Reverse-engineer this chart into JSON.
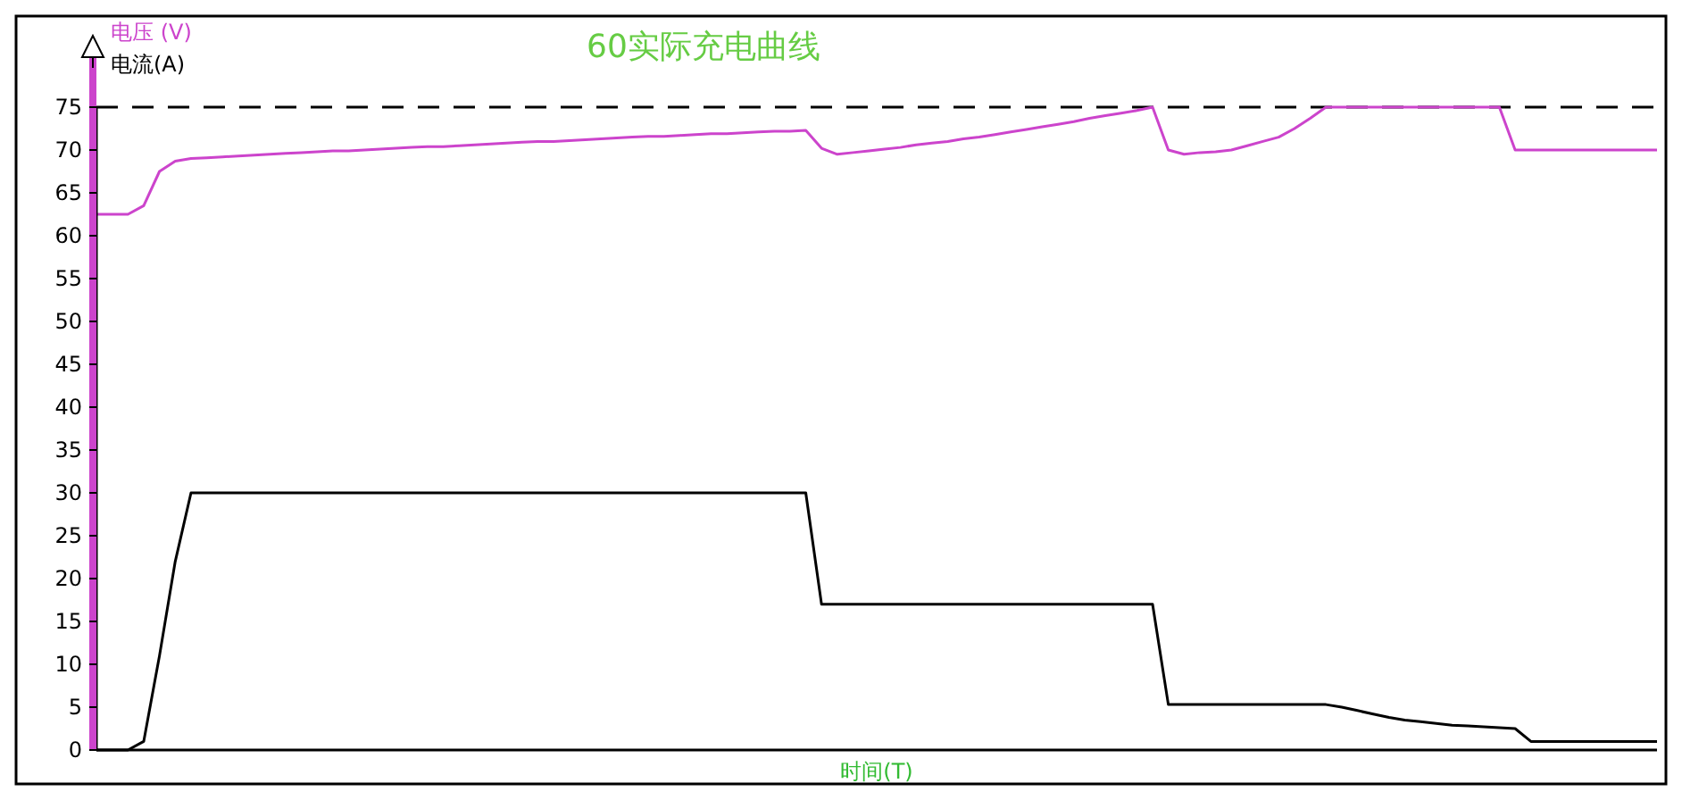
{
  "chart_data": {
    "type": "line",
    "title": "60实际充电曲线",
    "xlabel": "时间(T)",
    "categories": [
      null,
      null,
      null,
      null,
      null,
      null,
      null,
      null,
      null,
      null,
      null,
      null,
      null,
      null,
      null,
      null,
      null,
      null,
      null,
      null,
      null,
      null,
      null,
      null,
      null,
      null,
      null,
      null,
      null,
      null,
      null,
      null,
      null,
      null,
      null,
      null,
      null,
      null,
      null,
      null,
      null,
      null,
      null,
      null,
      null,
      null,
      null,
      null,
      null,
      null,
      null,
      null,
      null,
      null,
      null,
      null,
      null,
      null,
      null,
      null,
      null,
      null,
      null,
      null,
      null,
      null,
      null,
      null,
      null,
      null,
      null,
      null,
      null,
      null,
      null,
      null,
      null,
      null,
      null,
      null,
      null,
      null,
      null,
      null,
      null,
      null,
      null,
      null,
      null,
      null,
      null,
      null,
      null,
      null,
      null,
      null,
      null,
      null,
      null,
      null
    ],
    "ylim": [
      0,
      75
    ],
    "yticks": [
      0,
      5,
      10,
      15,
      20,
      25,
      30,
      35,
      40,
      45,
      50,
      55,
      60,
      65,
      70,
      75
    ],
    "tick_labels": "y",
    "legend": "top left",
    "line_style": "solid",
    "marker": "none",
    "series": [
      {
        "name": "电压 (V)",
        "color": "#cc44cc",
        "values": [
          62.5,
          62.5,
          62.5,
          63.5,
          67.5,
          68.7,
          69.0,
          69.1,
          69.2,
          69.3,
          69.4,
          69.5,
          69.6,
          69.7,
          69.8,
          69.9,
          69.9,
          70.0,
          70.1,
          70.2,
          70.3,
          70.4,
          70.4,
          70.5,
          70.6,
          70.7,
          70.8,
          70.9,
          71.0,
          71.0,
          71.1,
          71.2,
          71.3,
          71.4,
          71.5,
          71.6,
          71.6,
          71.7,
          71.8,
          71.9,
          71.9,
          72.0,
          72.1,
          72.2,
          72.2,
          72.3,
          70.2,
          69.5,
          69.7,
          69.9,
          70.1,
          70.3,
          70.6,
          70.8,
          71.0,
          71.3,
          71.5,
          71.8,
          72.1,
          72.4,
          72.7,
          73.0,
          73.3,
          73.7,
          74.0,
          74.3,
          74.6,
          75,
          70,
          69.5,
          69.7,
          69.8,
          70.0,
          70.5,
          71.0,
          71.5,
          72.5,
          73.7,
          75,
          75,
          75,
          75,
          75,
          75,
          75,
          75,
          75,
          75,
          75,
          75,
          70,
          70,
          70,
          70,
          70,
          70,
          70,
          70,
          70,
          70
        ]
      },
      {
        "name": "电流(A)",
        "color": "#000000",
        "values": [
          0,
          0,
          0,
          1,
          11,
          22,
          30,
          30,
          30,
          30,
          30,
          30,
          30,
          30,
          30,
          30,
          30,
          30,
          30,
          30,
          30,
          30,
          30,
          30,
          30,
          30,
          30,
          30,
          30,
          30,
          30,
          30,
          30,
          30,
          30,
          30,
          30,
          30,
          30,
          30,
          30,
          30,
          30,
          30,
          30,
          30,
          17,
          17,
          17,
          17,
          17,
          17,
          17,
          17,
          17,
          17,
          17,
          17,
          17,
          17,
          17,
          17,
          17,
          17,
          17,
          17,
          17,
          17,
          5.3,
          5.3,
          5.3,
          5.3,
          5.3,
          5.3,
          5.3,
          5.3,
          5.3,
          5.3,
          5.3,
          5.0,
          4.6,
          4.2,
          3.8,
          3.5,
          3.3,
          3.1,
          2.9,
          2.8,
          2.7,
          2.6,
          2.5,
          1,
          1,
          1,
          1,
          1,
          1,
          1,
          1,
          1
        ]
      }
    ],
    "ref_lines": [
      {
        "axis": "y",
        "value": 75,
        "color": "#000000",
        "line_style": "dashed"
      }
    ]
  }
}
